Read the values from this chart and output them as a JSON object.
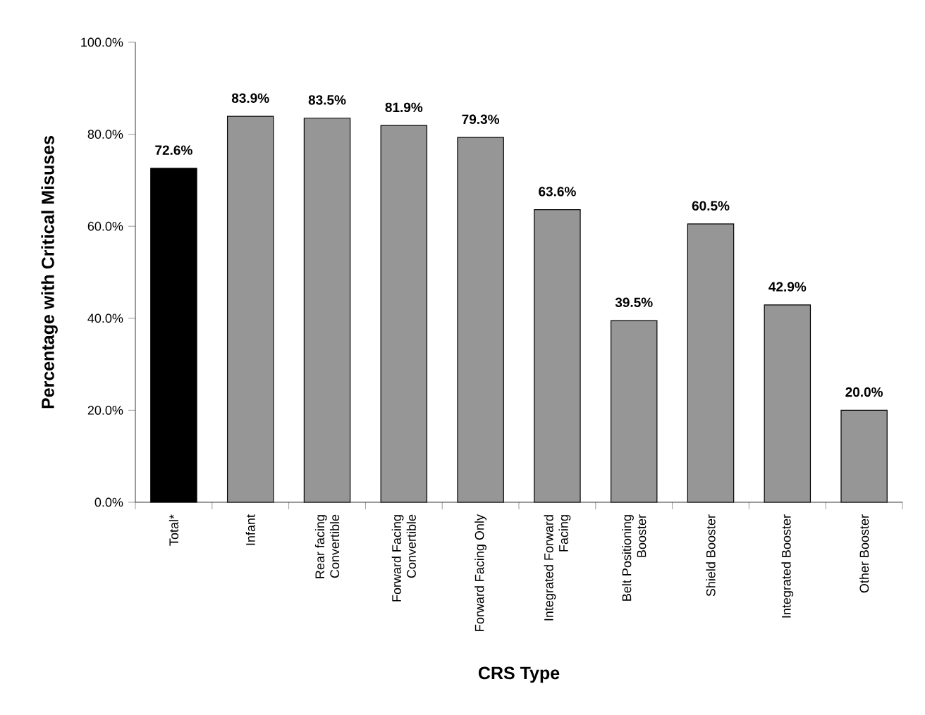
{
  "chart_data": {
    "type": "bar",
    "xlabel": "CRS Type",
    "ylabel": "Percentage with Critical Misuses",
    "categories": [
      "Total*",
      "Infant",
      "Rear facing Convertible",
      "Forward Facing Convertible",
      "Forward Facing Only",
      "Integrated Forward Facing",
      "Belt Positioning Booster",
      "Shield Booster",
      "Integrated Booster",
      "Other Booster"
    ],
    "values": [
      72.6,
      83.9,
      83.5,
      81.9,
      79.3,
      63.6,
      39.5,
      60.5,
      42.9,
      20.0
    ],
    "value_labels": [
      "72.6%",
      "83.9%",
      "83.5%",
      "81.9%",
      "79.3%",
      "63.6%",
      "39.5%",
      "60.5%",
      "42.9%",
      "20.0%"
    ],
    "colors": [
      "#000000",
      "#969696",
      "#969696",
      "#969696",
      "#969696",
      "#969696",
      "#969696",
      "#969696",
      "#969696",
      "#969696"
    ],
    "ylim": [
      0,
      100
    ],
    "yticks": [
      {
        "value": 0,
        "label": "0.0%"
      },
      {
        "value": 20,
        "label": "20.0%"
      },
      {
        "value": 40,
        "label": "40.0%"
      },
      {
        "value": 60,
        "label": "60.0%"
      },
      {
        "value": 80,
        "label": "80.0%"
      },
      {
        "value": 100,
        "label": "100.0%"
      }
    ],
    "grid": false
  }
}
